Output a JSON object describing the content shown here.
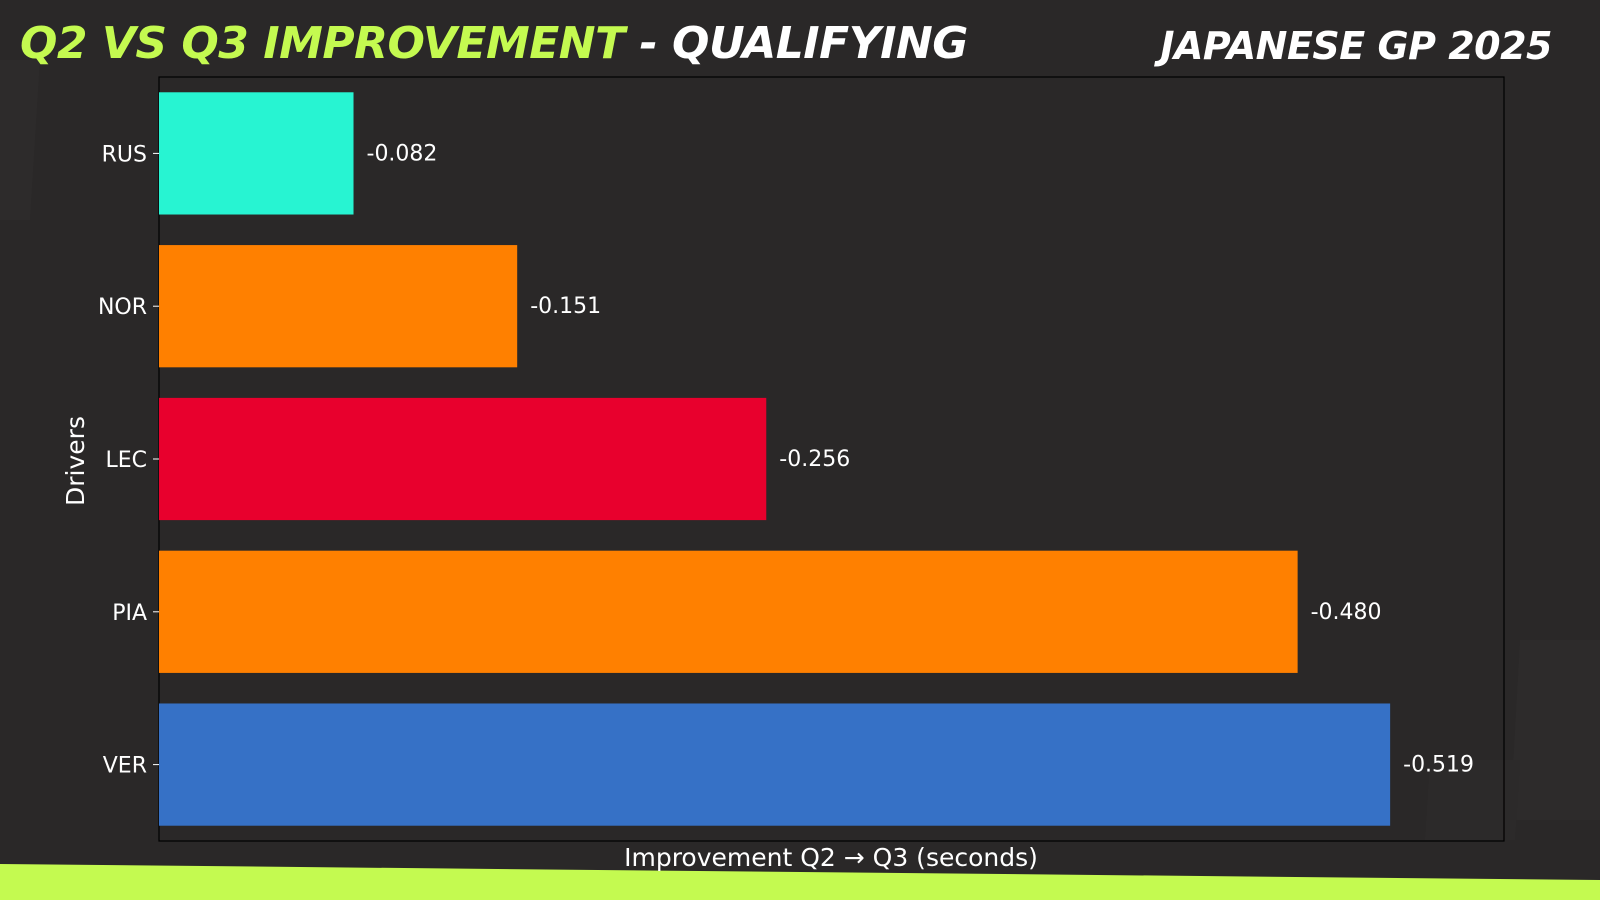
{
  "header": {
    "title_accent": "Q2 VS Q3 IMPROVEMENT",
    "title_rest": " - QUALIFYING",
    "event": "JAPANESE GP 2025"
  },
  "colors": {
    "background": "#2a2828",
    "title_accent": "#c4fa50",
    "bottom_stripe": "#c4fa50"
  },
  "chart_data": {
    "type": "bar",
    "orientation": "horizontal",
    "categories": [
      "RUS",
      "NOR",
      "LEC",
      "PIA",
      "VER"
    ],
    "values": [
      -0.082,
      -0.151,
      -0.256,
      -0.48,
      -0.519
    ],
    "value_labels": [
      "-0.082",
      "-0.151",
      "-0.256",
      "-0.480",
      "-0.519"
    ],
    "bar_colors": [
      "#27f4d2",
      "#ff8000",
      "#e8002d",
      "#ff8000",
      "#3671c6"
    ],
    "xlabel": "Improvement Q2 → Q3 (seconds)",
    "ylabel": "Drivers",
    "xlim": [
      0,
      -0.567
    ],
    "grid": false
  }
}
